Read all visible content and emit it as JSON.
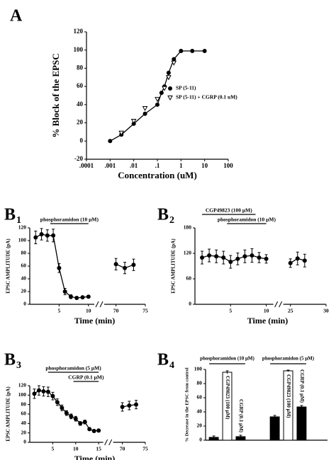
{
  "chart_data": [
    {
      "type": "line",
      "title": "A",
      "x_label": "Concentration (uM)",
      "y_label": "% Block of the EPSC",
      "xscale": "log",
      "xlim": [
        0.0001,
        100
      ],
      "xticks": [
        {
          "value": 0.0001,
          "label": ".0001"
        },
        {
          "value": 0.001,
          "label": ".001"
        },
        {
          "value": 0.01,
          "label": ".01"
        },
        {
          "value": 0.1,
          "label": ".1"
        },
        1,
        10,
        100
      ],
      "ylim": [
        -20,
        120
      ],
      "yticks": [
        -20,
        0,
        20,
        40,
        60,
        80,
        100,
        120
      ],
      "legend_position": "center-right",
      "series": [
        {
          "name": "SP (5-11)",
          "marker": "circle",
          "color": "#000000",
          "line": true,
          "x": [
            0.001,
            0.003,
            0.01,
            0.03,
            0.1,
            0.15,
            0.2,
            0.3,
            0.5,
            1,
            3,
            10
          ],
          "values": [
            0,
            7,
            19,
            30,
            40,
            53,
            60,
            75,
            90,
            99,
            99,
            99
          ]
        },
        {
          "name": "SP (5-11) + CGRP (0.1 uM)",
          "marker": "triangle-open",
          "color": "#000000",
          "line": false,
          "x": [
            0.003,
            0.01,
            0.03,
            0.1,
            0.2,
            0.3,
            0.5
          ],
          "values": [
            9,
            22,
            36,
            46,
            58,
            70,
            86
          ]
        }
      ]
    },
    {
      "type": "line",
      "title": "B",
      "title_sub": "1",
      "x_label": "Time (min)",
      "y_label": "EPSC AMPLITUDE (pA)",
      "xlim": [
        0,
        75
      ],
      "axis_break": [
        11,
        68
      ],
      "xticks": [
        5,
        10,
        70,
        75
      ],
      "ylim": [
        0,
        120
      ],
      "yticks": [
        0,
        20,
        40,
        60,
        80,
        100,
        120
      ],
      "annotations": [
        {
          "text": "phosphoramidon (10 μM)",
          "x": [
            3.5,
            10
          ]
        }
      ],
      "series": [
        {
          "marker": "circle",
          "color": "#000000",
          "line": true,
          "x": [
            1,
            2,
            3,
            4,
            5,
            6,
            7,
            8,
            9,
            10,
            70,
            71.5,
            73
          ],
          "values": [
            105,
            110,
            108,
            108,
            57,
            20,
            12,
            10,
            11,
            12,
            63,
            57,
            62
          ],
          "errors": [
            10,
            9,
            9,
            10,
            7,
            5,
            3,
            2,
            2,
            2,
            9,
            9,
            9
          ]
        }
      ]
    },
    {
      "type": "line",
      "title": "B",
      "title_sub": "2",
      "x_label": "Time (min)",
      "y_label": "EPSC AMPLITUDE (pA)",
      "xlim": [
        0,
        30
      ],
      "axis_break": [
        11,
        24
      ],
      "xticks": [
        5,
        10,
        25,
        30
      ],
      "ylim": [
        0,
        180
      ],
      "yticks": [
        0,
        60,
        120,
        180
      ],
      "annotations": [
        {
          "text": "CGP49823 (100 μM)",
          "x": [
            1,
            8.5
          ]
        },
        {
          "text": "phosphoramidon (10 μM)",
          "x": [
            4.5,
            10
          ]
        }
      ],
      "series": [
        {
          "marker": "circle",
          "color": "#000000",
          "line": true,
          "x": [
            1,
            2,
            3,
            4,
            5,
            6,
            7,
            8,
            9,
            10,
            25,
            26,
            27
          ],
          "values": [
            110,
            115,
            113,
            110,
            100,
            107,
            113,
            115,
            110,
            107,
            97,
            108,
            103
          ],
          "errors": [
            15,
            15,
            15,
            15,
            15,
            14,
            15,
            16,
            12,
            10,
            10,
            15,
            15
          ]
        }
      ]
    },
    {
      "type": "line",
      "title": "B",
      "title_sub": "3",
      "x_label": "Time (min)",
      "y_label": "EPSC AMPLITUDE (pA)",
      "xlim": [
        0,
        75
      ],
      "axis_break": [
        16,
        68
      ],
      "xticks": [
        5,
        10,
        15,
        70,
        75
      ],
      "ylim": [
        0,
        120
      ],
      "yticks": [
        0,
        20,
        40,
        60,
        80,
        100,
        120
      ],
      "annotations": [
        {
          "text": "phosphoramidon (5 μM)",
          "x": [
            4,
            15
          ]
        },
        {
          "text": "CGRP (0.1 μM)",
          "x": [
            9.5,
            15
          ]
        }
      ],
      "series": [
        {
          "marker": "circle",
          "color": "#000000",
          "line": true,
          "x": [
            1,
            2,
            3,
            4,
            5,
            6,
            7,
            8,
            9,
            10,
            11,
            12,
            13,
            14,
            15,
            70,
            71.5,
            73
          ],
          "values": [
            103,
            110,
            108,
            107,
            98,
            85,
            73,
            62,
            55,
            50,
            40,
            43,
            28,
            24,
            25,
            75,
            78,
            80
          ],
          "errors": [
            10,
            10,
            10,
            10,
            8,
            7,
            6,
            5,
            5,
            5,
            4,
            4,
            3,
            3,
            3,
            9,
            9,
            9
          ]
        }
      ]
    },
    {
      "type": "bar",
      "title": "B",
      "title_sub": "4",
      "y_label": "% Decrease in the EPSC from control",
      "ylim": [
        0,
        100
      ],
      "yticks": [
        0,
        20,
        40,
        60,
        80,
        100
      ],
      "groups": [
        {
          "label": "phosphoramidon (10 μM)",
          "bars": [
            {
              "label": null,
              "value": 4,
              "error": 2,
              "color": "#000000"
            },
            {
              "label": "CGP49823 (100 μM)",
              "value": 96,
              "error": 2,
              "color": "#ffffff"
            },
            {
              "label": "CGRP (0.1 μM)",
              "value": 5,
              "error": 2,
              "color": "#000000"
            }
          ]
        },
        {
          "label": "phosphoramidon (5 μM)",
          "bars": [
            {
              "label": null,
              "value": 33,
              "error": 2,
              "color": "#000000"
            },
            {
              "label": "CGP49823 (100 μM)",
              "value": 98,
              "error": 1,
              "color": "#ffffff"
            },
            {
              "label": "CGRP (0.1 μM)",
              "value": 47,
              "error": 2,
              "color": "#000000"
            }
          ]
        }
      ]
    }
  ]
}
